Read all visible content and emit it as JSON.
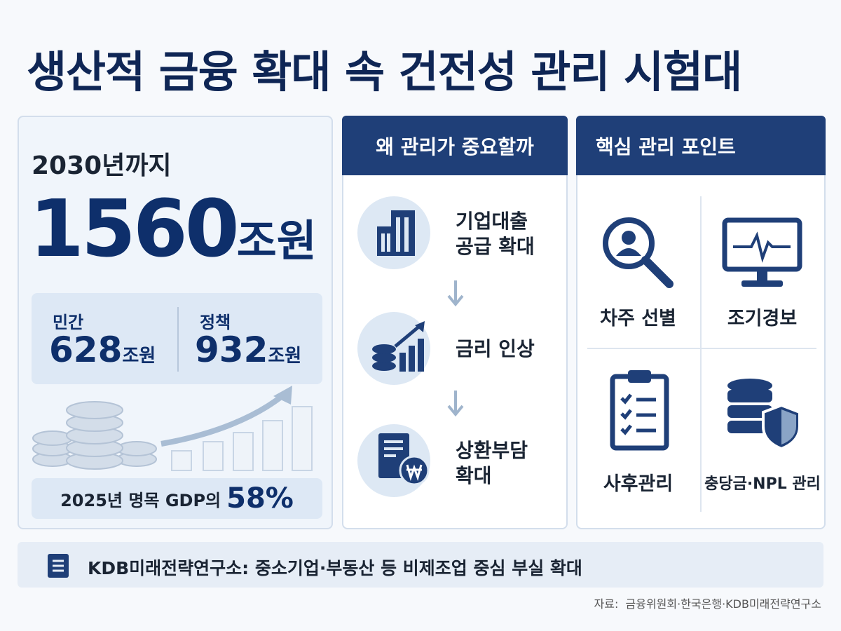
{
  "title": "생산적 금융 확대 속 건전성 관리 시험대",
  "left": {
    "period": "2030년까지",
    "total": "1560",
    "total_unit": "조원",
    "breakdown": [
      {
        "label": "민간",
        "value": "628",
        "unit": "조원"
      },
      {
        "label": "정책",
        "value": "932",
        "unit": "조원"
      }
    ],
    "gdp_note": "2025년 명목 GDP의",
    "gdp_share": "58%"
  },
  "why": {
    "title": "왜 관리가 중요할까",
    "items": [
      {
        "lines": [
          "기업대출",
          "공급 확대"
        ]
      },
      {
        "lines": [
          "금리 인상"
        ]
      },
      {
        "lines": [
          "상환부담",
          "확대"
        ]
      }
    ]
  },
  "points": {
    "title": "핵심 관리 포인트",
    "items": [
      "차주 선별",
      "조기경보",
      "사후관리",
      "충당금·NPL 관리"
    ]
  },
  "note": "KDB미래전략연구소: 중소기업·부동산 등 비제조업 중심 부실 확대",
  "source": "자료:  금융위원회·한국은행·KDB미래전략연구소"
}
